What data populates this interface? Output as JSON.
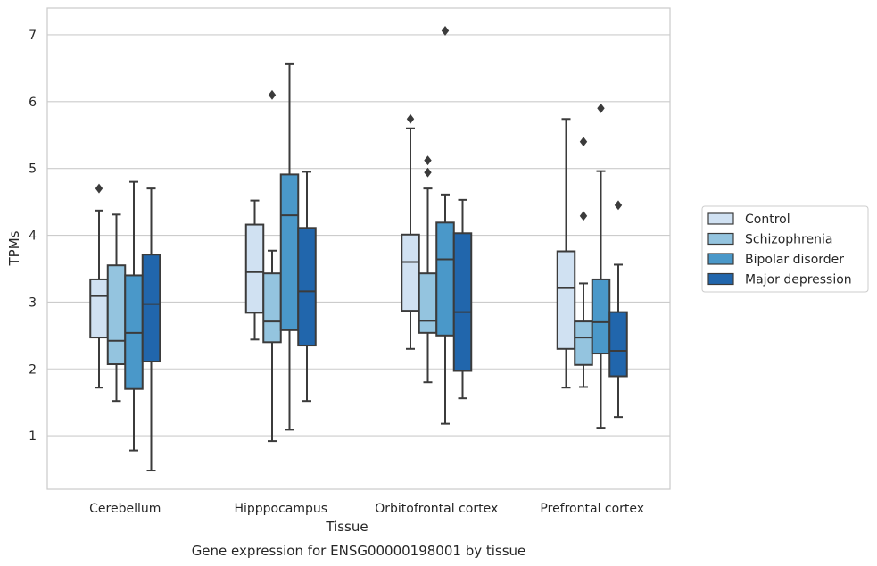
{
  "caption": "Gene expression for ENSG00000198001 by tissue",
  "chart_data": {
    "type": "box",
    "title": "",
    "xlabel": "Tissue",
    "ylabel": "TPMs",
    "categories": [
      "Cerebellum",
      "Hipppocampus",
      "Orbitofrontal cortex",
      "Prefrontal cortex"
    ],
    "yticks": [
      1,
      2,
      3,
      4,
      5,
      6,
      7
    ],
    "ylim": [
      0.2,
      7.4
    ],
    "grid": "horizontal",
    "legend_position": "right",
    "series": [
      {
        "name": "Control",
        "color": "#d0e1f2",
        "boxes": [
          {
            "whisker_low": 1.72,
            "q1": 2.47,
            "median": 3.09,
            "q3": 3.34,
            "whisker_high": 4.37,
            "outliers": [
              4.7
            ]
          },
          {
            "whisker_low": 2.44,
            "q1": 2.84,
            "median": 3.45,
            "q3": 4.16,
            "whisker_high": 4.52,
            "outliers": []
          },
          {
            "whisker_low": 2.3,
            "q1": 2.87,
            "median": 3.6,
            "q3": 4.01,
            "whisker_high": 5.6,
            "outliers": [
              5.74
            ]
          },
          {
            "whisker_low": 1.72,
            "q1": 2.3,
            "median": 3.21,
            "q3": 3.76,
            "whisker_high": 5.74,
            "outliers": []
          }
        ]
      },
      {
        "name": "Schizophrenia",
        "color": "#94c4df",
        "boxes": [
          {
            "whisker_low": 1.52,
            "q1": 2.07,
            "median": 2.42,
            "q3": 3.55,
            "whisker_high": 4.31,
            "outliers": []
          },
          {
            "whisker_low": 0.92,
            "q1": 2.4,
            "median": 2.71,
            "q3": 3.43,
            "whisker_high": 3.77,
            "outliers": [
              6.1
            ]
          },
          {
            "whisker_low": 1.8,
            "q1": 2.54,
            "median": 2.72,
            "q3": 3.43,
            "whisker_high": 4.7,
            "outliers": [
              4.94,
              5.12
            ]
          },
          {
            "whisker_low": 1.73,
            "q1": 2.06,
            "median": 2.47,
            "q3": 2.71,
            "whisker_high": 3.28,
            "outliers": [
              4.29,
              5.4
            ]
          }
        ]
      },
      {
        "name": "Bipolar disorder",
        "color": "#4a98c9",
        "boxes": [
          {
            "whisker_low": 0.78,
            "q1": 1.7,
            "median": 2.54,
            "q3": 3.4,
            "whisker_high": 4.8,
            "outliers": []
          },
          {
            "whisker_low": 1.09,
            "q1": 2.58,
            "median": 4.3,
            "q3": 4.91,
            "whisker_high": 6.56,
            "outliers": []
          },
          {
            "whisker_low": 1.18,
            "q1": 2.5,
            "median": 3.64,
            "q3": 4.19,
            "whisker_high": 4.61,
            "outliers": [
              7.06
            ]
          },
          {
            "whisker_low": 1.12,
            "q1": 2.23,
            "median": 2.7,
            "q3": 3.34,
            "whisker_high": 4.96,
            "outliers": [
              5.9
            ]
          }
        ]
      },
      {
        "name": "Major depression",
        "color": "#2166ac",
        "boxes": [
          {
            "whisker_low": 0.48,
            "q1": 2.11,
            "median": 2.97,
            "q3": 3.71,
            "whisker_high": 4.7,
            "outliers": []
          },
          {
            "whisker_low": 1.52,
            "q1": 2.35,
            "median": 3.16,
            "q3": 4.11,
            "whisker_high": 4.95,
            "outliers": []
          },
          {
            "whisker_low": 1.56,
            "q1": 1.97,
            "median": 2.85,
            "q3": 4.03,
            "whisker_high": 4.53,
            "outliers": []
          },
          {
            "whisker_low": 1.28,
            "q1": 1.89,
            "median": 2.27,
            "q3": 2.85,
            "whisker_high": 3.56,
            "outliers": [
              4.45
            ]
          }
        ]
      }
    ]
  }
}
